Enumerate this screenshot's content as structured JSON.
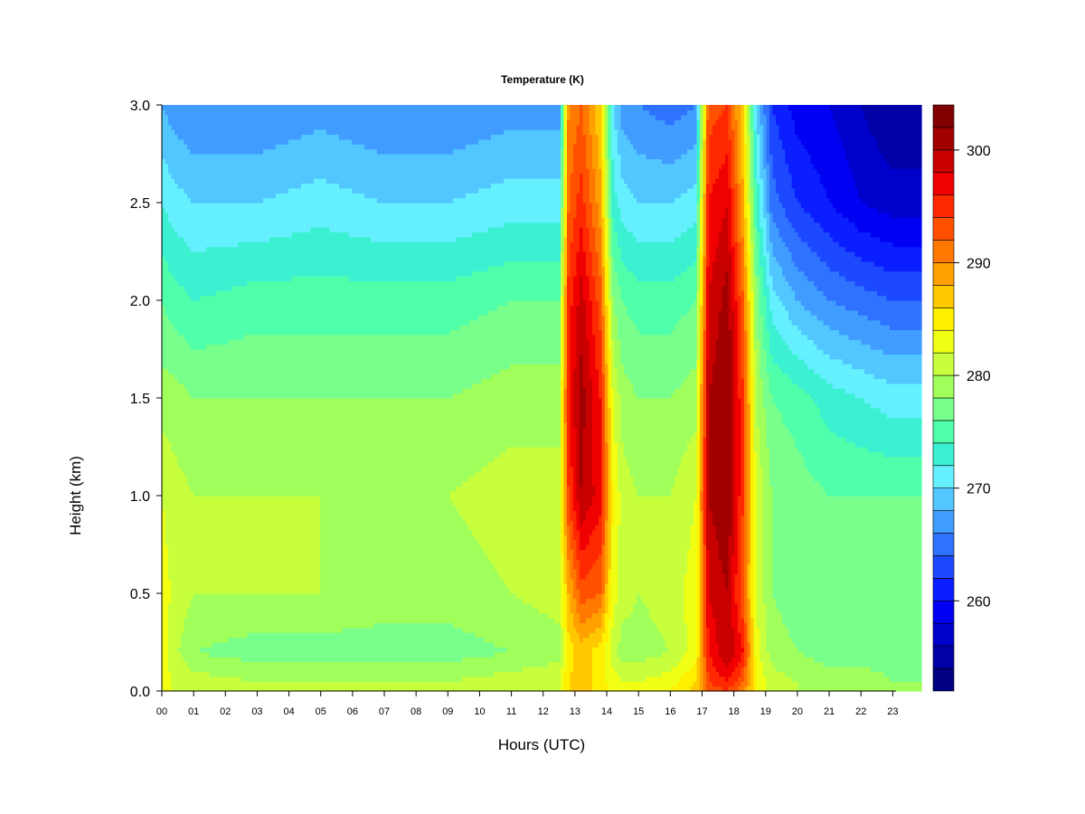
{
  "chart_data": {
    "type": "heatmap",
    "title": "Temperature (K)",
    "xlabel": "Hours (UTC)",
    "ylabel": "Height (km)",
    "xlim": [
      0,
      23.9
    ],
    "ylim": [
      0,
      3.0
    ],
    "x_ticks": [
      "00",
      "01",
      "02",
      "03",
      "04",
      "05",
      "06",
      "07",
      "08",
      "09",
      "10",
      "11",
      "12",
      "13",
      "14",
      "15",
      "16",
      "17",
      "18",
      "19",
      "20",
      "21",
      "22",
      "23"
    ],
    "y_ticks": [
      "0.0",
      "0.5",
      "1.0",
      "1.5",
      "2.0",
      "2.5",
      "3.0"
    ],
    "colorbar": {
      "range": [
        252,
        304
      ],
      "step": 2,
      "tick_values": [
        260,
        270,
        280,
        290,
        300
      ],
      "tick_labels": [
        "260",
        "270",
        "280",
        "290",
        "300"
      ],
      "colors": [
        "#000080",
        "#0000A6",
        "#0000CC",
        "#0000F2",
        "#0A1EFF",
        "#1C48FF",
        "#2E72FF",
        "#409CFF",
        "#52C6FF",
        "#64F0FF",
        "#3CF0D2",
        "#50FFAA",
        "#78FF8C",
        "#A0FF5A",
        "#C8FF3C",
        "#F0FF14",
        "#FFF000",
        "#FFC800",
        "#FFA000",
        "#FF7800",
        "#FF5000",
        "#FF2800",
        "#F00000",
        "#C80000",
        "#A00000",
        "#800000"
      ]
    },
    "height_profile_km": [
      0,
      0.05,
      0.2,
      0.5,
      1.0,
      1.5,
      2.0,
      2.5,
      3.0
    ],
    "time_keyframes_utc": [
      0,
      0.3,
      1,
      3,
      5,
      7,
      9,
      11,
      12.5,
      12.8,
      13.2,
      13.8,
      14.2,
      14.5,
      15,
      16,
      16.8,
      17.2,
      17.8,
      18.3,
      18.7,
      19.2,
      20,
      21,
      22,
      23,
      23.9
    ],
    "temperature_profiles_K": [
      [
        283,
        284,
        283,
        283,
        282,
        279,
        276,
        272,
        268
      ],
      [
        282,
        282,
        281,
        282,
        281,
        279,
        275,
        271,
        267
      ],
      [
        282,
        281,
        278,
        280,
        280,
        278,
        274,
        270,
        266
      ],
      [
        282,
        280,
        277,
        280,
        280,
        278,
        275,
        270,
        266
      ],
      [
        282,
        280,
        277,
        280,
        280,
        278,
        275,
        271,
        267
      ],
      [
        282,
        280,
        277,
        279,
        280,
        278,
        275,
        270,
        266
      ],
      [
        282,
        280,
        277,
        279,
        280,
        278,
        275,
        270,
        266
      ],
      [
        282,
        281,
        278,
        280,
        281,
        279,
        276,
        271,
        267
      ],
      [
        282,
        282,
        279,
        281,
        281,
        279,
        276,
        271,
        267
      ],
      [
        286,
        286,
        285,
        288,
        294,
        296,
        295,
        292,
        290
      ],
      [
        287,
        287,
        287,
        293,
        300,
        301,
        299,
        295,
        292
      ],
      [
        285,
        285,
        285,
        292,
        297,
        296,
        293,
        289,
        286
      ],
      [
        283,
        283,
        281,
        283,
        284,
        282,
        278,
        273,
        270
      ],
      [
        282,
        282,
        279,
        281,
        281,
        279,
        276,
        271,
        267
      ],
      [
        282,
        282,
        279,
        280,
        280,
        278,
        275,
        270,
        266
      ],
      [
        284,
        283,
        280,
        281,
        280,
        278,
        275,
        270,
        265
      ],
      [
        287,
        286,
        283,
        283,
        282,
        279,
        276,
        271,
        266
      ],
      [
        292,
        294,
        296,
        298,
        300,
        300,
        298,
        296,
        293
      ],
      [
        294,
        296,
        300,
        300,
        302,
        302,
        301,
        298,
        294
      ],
      [
        290,
        292,
        296,
        292,
        294,
        294,
        292,
        288,
        286
      ],
      [
        284,
        284,
        283,
        282,
        282,
        280,
        278,
        274,
        270
      ],
      [
        281,
        281,
        279,
        278,
        278,
        276,
        271,
        265,
        262
      ],
      [
        280,
        280,
        278,
        277,
        277,
        275,
        268,
        262,
        259
      ],
      [
        279,
        279,
        277,
        277,
        276,
        273,
        266,
        260,
        258
      ],
      [
        279,
        279,
        277,
        277,
        276,
        272,
        265,
        258,
        256
      ],
      [
        279,
        278,
        277,
        277,
        276,
        271,
        264,
        257,
        254
      ],
      [
        278,
        278,
        277,
        277,
        276,
        271,
        264,
        257,
        254
      ]
    ]
  }
}
